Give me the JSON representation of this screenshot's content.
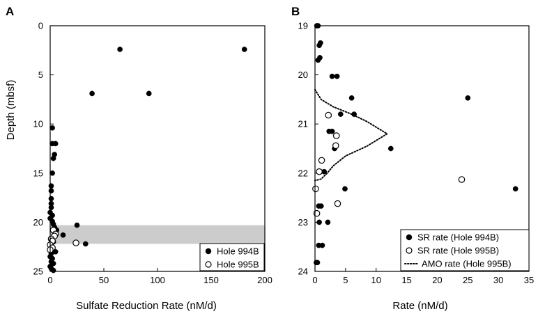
{
  "chart_data": [
    {
      "panel": "A",
      "type": "scatter",
      "xlabel": "Sulfate Reduction Rate (nM/d)",
      "ylabel": "Depth (mbsf)",
      "xlim": [
        0,
        200
      ],
      "ylim": [
        0,
        25
      ],
      "y_inverted": true,
      "xticks": [
        0,
        50,
        100,
        150,
        200
      ],
      "yticks": [
        0,
        5,
        10,
        15,
        20,
        25
      ],
      "shaded_band": {
        "y": [
          20.3,
          22.2
        ],
        "color": "#cccccc"
      },
      "legend": {
        "placement": "bottom-right",
        "entries": [
          "Hole 994B",
          "Hole 995B"
        ]
      },
      "series": [
        {
          "name": "Hole 994B",
          "marker": "filled-circle",
          "points": [
            [
              65,
              2.4
            ],
            [
              181,
              2.4
            ],
            [
              39,
              6.9
            ],
            [
              92,
              6.9
            ],
            [
              2,
              10.4
            ],
            [
              2,
              12.0
            ],
            [
              5,
              12.0
            ],
            [
              4,
              13.1
            ],
            [
              3,
              13.5
            ],
            [
              2,
              15.0
            ],
            [
              1,
              16.3
            ],
            [
              1,
              16.8
            ],
            [
              1,
              17.6
            ],
            [
              1,
              18.1
            ],
            [
              1,
              18.5
            ],
            [
              0,
              19.0
            ],
            [
              2,
              19.3
            ],
            [
              0,
              19.6
            ],
            [
              2,
              19.9
            ],
            [
              3,
              20.2
            ],
            [
              4,
              20.5
            ],
            [
              6,
              20.8
            ],
            [
              25,
              20.3
            ],
            [
              12,
              21.3
            ],
            [
              2,
              21.6
            ],
            [
              3,
              22.0
            ],
            [
              33,
              22.2
            ],
            [
              2,
              22.6
            ],
            [
              5,
              23.0
            ],
            [
              1,
              23.2
            ],
            [
              0,
              23.5
            ],
            [
              2,
              23.7
            ],
            [
              1,
              24.0
            ],
            [
              3,
              24.2
            ],
            [
              0,
              24.5
            ],
            [
              1,
              24.7
            ],
            [
              3,
              24.9
            ]
          ]
        },
        {
          "name": "Hole 995B",
          "marker": "open-circle",
          "points": [
            [
              3,
              20.8
            ],
            [
              5,
              21.2
            ],
            [
              4,
              21.4
            ],
            [
              1,
              21.7
            ],
            [
              2,
              21.9
            ],
            [
              0,
              22.3
            ],
            [
              2,
              22.6
            ],
            [
              0,
              22.8
            ],
            [
              24,
              22.1
            ]
          ]
        }
      ]
    },
    {
      "panel": "B",
      "type": "scatter",
      "xlabel": "Rate (nM/d)",
      "ylabel": "",
      "xlim": [
        0,
        35
      ],
      "ylim": [
        19,
        24
      ],
      "y_inverted": true,
      "xticks": [
        0,
        5,
        10,
        15,
        20,
        25,
        30,
        35
      ],
      "yticks": [
        19,
        20,
        21,
        22,
        23,
        24
      ],
      "legend": {
        "placement": "bottom-right",
        "entries": [
          "SR rate (Hole 994B)",
          "SR rate (Hole 995B)",
          "AMO rate (Hole 995B)"
        ]
      },
      "series": [
        {
          "name": "SR rate (Hole 994B)",
          "marker": "filled-circle",
          "points": [
            [
              0.3,
              19.0
            ],
            [
              0.5,
              19.0
            ],
            [
              0.9,
              19.35
            ],
            [
              0.7,
              19.4
            ],
            [
              0.8,
              19.65
            ],
            [
              0.5,
              19.7
            ],
            [
              2.8,
              20.03
            ],
            [
              3.6,
              20.03
            ],
            [
              6.0,
              20.47
            ],
            [
              25.0,
              20.47
            ],
            [
              4.2,
              20.8
            ],
            [
              6.4,
              20.8
            ],
            [
              2.3,
              21.15
            ],
            [
              2.8,
              21.15
            ],
            [
              3.2,
              21.5
            ],
            [
              12.4,
              21.5
            ],
            [
              0.9,
              21.97
            ],
            [
              1.5,
              21.97
            ],
            [
              4.9,
              22.32
            ],
            [
              32.8,
              22.32
            ],
            [
              0.6,
              22.67
            ],
            [
              1.0,
              22.67
            ],
            [
              0.7,
              23.0
            ],
            [
              2.1,
              23.0
            ],
            [
              0.6,
              23.47
            ],
            [
              1.2,
              23.47
            ],
            [
              0.2,
              23.82
            ],
            [
              0.4,
              23.82
            ]
          ]
        },
        {
          "name": "SR rate (Hole 995B)",
          "marker": "open-circle",
          "points": [
            [
              2.2,
              20.82
            ],
            [
              3.5,
              21.24
            ],
            [
              3.4,
              21.44
            ],
            [
              1.1,
              21.74
            ],
            [
              0.7,
              21.97
            ],
            [
              24.0,
              22.13
            ],
            [
              0.1,
              22.32
            ],
            [
              3.7,
              22.62
            ],
            [
              0.3,
              22.82
            ]
          ]
        },
        {
          "name": "AMO rate (Hole 995B)",
          "line": "dotted",
          "points": [
            [
              0,
              20.3
            ],
            [
              1,
              20.5
            ],
            [
              3,
              20.65
            ],
            [
              6,
              20.8
            ],
            [
              8.5,
              20.95
            ],
            [
              11.8,
              21.2
            ],
            [
              8.5,
              21.45
            ],
            [
              5,
              21.65
            ],
            [
              3,
              21.85
            ],
            [
              2,
              22.0
            ],
            [
              1,
              22.12
            ],
            [
              0,
              22.15
            ]
          ]
        }
      ]
    }
  ]
}
